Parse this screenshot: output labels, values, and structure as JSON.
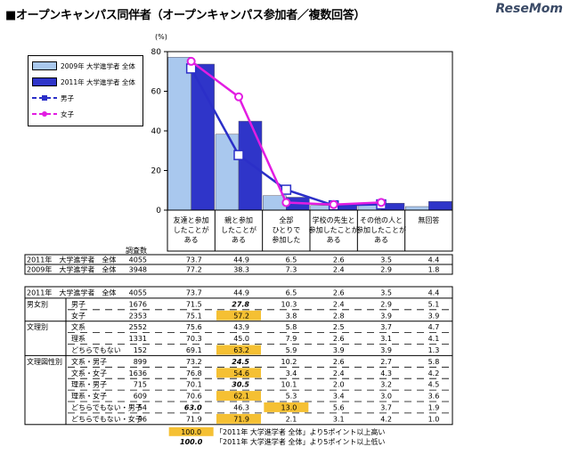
{
  "title": "■オープンキャンパス同伴者（オープンキャンパス参加者／複数回答）",
  "logo": "ReseMom",
  "chart_data": {
    "type": "bar",
    "categories": [
      "友達と参加したことがある",
      "親と参加したことがある",
      "全部ひとりで参加した",
      "学校の先生と参加したことがある",
      "その他の人と参加したことがある",
      "無回答"
    ],
    "category_lines": [
      [
        "友達と参加",
        "したことが",
        "ある"
      ],
      [
        "親と参加",
        "したことが",
        "ある"
      ],
      [
        "全部",
        "ひとりで",
        "参加した"
      ],
      [
        "学校の先生と",
        "参加したことが",
        "ある"
      ],
      [
        "その他の人と",
        "参加したことが",
        "ある"
      ],
      [
        "無回答"
      ]
    ],
    "ylim": [
      0,
      80
    ],
    "yticks": [
      0,
      20,
      40,
      60,
      80
    ],
    "ylabel": "(%)",
    "series": [
      {
        "name": "2009年 大学進学者 全体",
        "type": "bar",
        "color": "#a9c8ee",
        "values": [
          77.2,
          38.3,
          7.3,
          2.4,
          2.9,
          1.8
        ]
      },
      {
        "name": "2011年 大学進学者 全体",
        "type": "bar",
        "color": "#2f35c9",
        "values": [
          73.7,
          44.9,
          6.5,
          2.6,
          3.5,
          4.4
        ]
      },
      {
        "name": "男子",
        "type": "line",
        "color": "#2b2fc8",
        "marker": "square",
        "values": [
          71.5,
          27.8,
          10.3,
          2.4,
          2.9,
          null
        ]
      },
      {
        "name": "女子",
        "type": "line",
        "color": "#e21de2",
        "marker": "circle",
        "values": [
          75.1,
          57.2,
          3.8,
          2.8,
          3.9,
          null
        ]
      }
    ],
    "grid": false,
    "legend_position": "top-left"
  },
  "table": {
    "count_header": "調査数",
    "top_rows": [
      {
        "group": "",
        "label": "2011年　大学進学者　全体",
        "n": "4055",
        "values": [
          "73.7",
          "44.9",
          "6.5",
          "2.6",
          "3.5",
          "4.4"
        ]
      },
      {
        "group": "",
        "label": "2009年　大学進学者　全体",
        "n": "3948",
        "values": [
          "77.2",
          "38.3",
          "7.3",
          "2.4",
          "2.9",
          "1.8"
        ]
      }
    ],
    "rows": [
      {
        "group": "",
        "label": "2011年　大学進学者　全体",
        "n": "4055",
        "values": [
          "73.7",
          "44.9",
          "6.5",
          "2.6",
          "3.5",
          "4.4"
        ],
        "hi": [],
        "lo": []
      },
      {
        "group": "男女別",
        "label": "男子",
        "n": "1676",
        "values": [
          "71.5",
          "27.8",
          "10.3",
          "2.4",
          "2.9",
          "5.1"
        ],
        "hi": [],
        "lo": [
          1
        ]
      },
      {
        "group": "",
        "label": "女子",
        "n": "2353",
        "values": [
          "75.1",
          "57.2",
          "3.8",
          "2.8",
          "3.9",
          "3.9"
        ],
        "hi": [
          1
        ],
        "lo": []
      },
      {
        "group": "文理別",
        "label": "文系",
        "n": "2552",
        "values": [
          "75.6",
          "43.9",
          "5.8",
          "2.5",
          "3.7",
          "4.7"
        ],
        "hi": [],
        "lo": []
      },
      {
        "group": "",
        "label": "理系",
        "n": "1331",
        "values": [
          "70.3",
          "45.0",
          "7.9",
          "2.6",
          "3.1",
          "4.1"
        ],
        "hi": [],
        "lo": []
      },
      {
        "group": "",
        "label": "どちらでもない",
        "n": "152",
        "values": [
          "69.1",
          "63.2",
          "5.9",
          "3.9",
          "3.9",
          "1.3"
        ],
        "hi": [
          1
        ],
        "lo": []
      },
      {
        "group": "文理図性別",
        "label": "文系・男子",
        "n": "899",
        "values": [
          "73.2",
          "24.5",
          "10.2",
          "2.6",
          "2.7",
          "5.8"
        ],
        "hi": [],
        "lo": [
          1
        ]
      },
      {
        "group": "",
        "label": "文系・女子",
        "n": "1636",
        "values": [
          "76.8",
          "54.6",
          "3.4",
          "2.4",
          "4.3",
          "4.2"
        ],
        "hi": [
          1
        ],
        "lo": []
      },
      {
        "group": "",
        "label": "理系・男子",
        "n": "715",
        "values": [
          "70.1",
          "30.5",
          "10.1",
          "2.0",
          "3.2",
          "4.5"
        ],
        "hi": [],
        "lo": [
          1
        ]
      },
      {
        "group": "",
        "label": "理系・女子",
        "n": "609",
        "values": [
          "70.6",
          "62.1",
          "5.3",
          "3.4",
          "3.0",
          "3.6"
        ],
        "hi": [
          1
        ],
        "lo": []
      },
      {
        "group": "",
        "label": "どちらでもない・男子",
        "n": "54",
        "values": [
          "63.0",
          "46.3",
          "13.0",
          "5.6",
          "3.7",
          "1.9"
        ],
        "hi": [
          2
        ],
        "lo": [
          0
        ]
      },
      {
        "group": "",
        "label": "どちらでもない・女子",
        "n": "96",
        "values": [
          "71.9",
          "71.9",
          "2.1",
          "3.1",
          "4.2",
          "1.0"
        ],
        "hi": [
          1
        ],
        "lo": []
      }
    ],
    "note_hi_sample": "100.0",
    "note_hi_text": "「2011年 大学進学者 全体」より5ポイント以上高い",
    "note_lo_sample": "100.0",
    "note_lo_text": "「2011年 大学進学者 全体」より5ポイント以上低い",
    "hi_color": "#f5c033"
  }
}
